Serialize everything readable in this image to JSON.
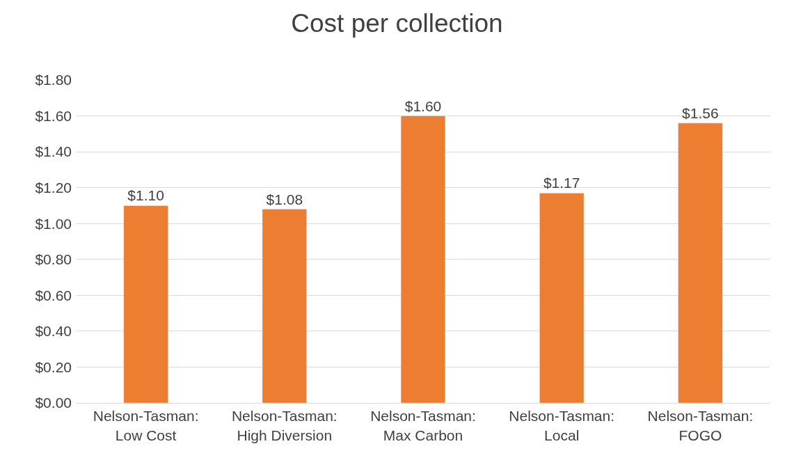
{
  "chart_data": {
    "type": "bar",
    "title": "Cost per collection",
    "categories": [
      "Nelson-Tasman:\nLow Cost",
      "Nelson-Tasman:\nHigh Diversion",
      "Nelson-Tasman:\nMax Carbon",
      "Nelson-Tasman:\nLocal",
      "Nelson-Tasman:\nFOGO"
    ],
    "values": [
      1.1,
      1.08,
      1.6,
      1.17,
      1.56
    ],
    "value_labels": [
      "$1.10",
      "$1.08",
      "$1.60",
      "$1.17",
      "$1.56"
    ],
    "color": "#ed7d31",
    "ylim": [
      0,
      1.8
    ],
    "yticks": [
      {
        "value": 0,
        "label": "$0.00"
      },
      {
        "value": 0.2,
        "label": "$0.20"
      },
      {
        "value": 0.4,
        "label": "$0.40"
      },
      {
        "value": 0.6,
        "label": "$0.60"
      },
      {
        "value": 0.8,
        "label": "$0.80"
      },
      {
        "value": 1.0,
        "label": "$1.00"
      },
      {
        "value": 1.2,
        "label": "$1.20"
      },
      {
        "value": 1.4,
        "label": "$1.40"
      },
      {
        "value": 1.6,
        "label": "$1.60"
      },
      {
        "value": 1.8,
        "label": "$1.80"
      }
    ],
    "grid": "y",
    "legend": false
  }
}
